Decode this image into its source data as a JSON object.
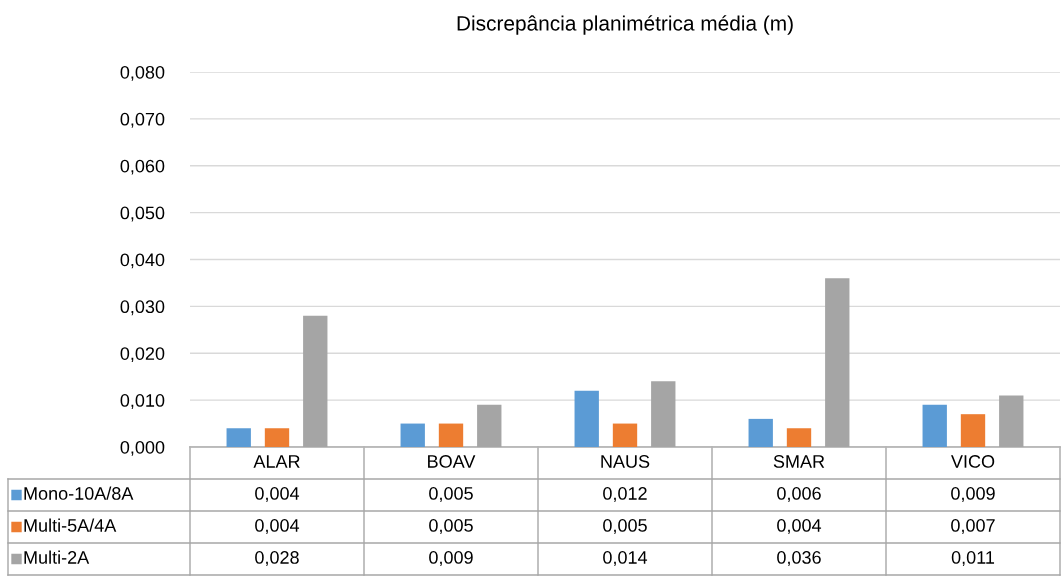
{
  "chart_data": {
    "type": "bar",
    "title": "Discrepância planimétrica média (m)",
    "categories": [
      "ALAR",
      "BOAV",
      "NAUS",
      "SMAR",
      "VICO"
    ],
    "series": [
      {
        "name": "Mono-10A/8A",
        "color": "#5b9bd5",
        "values": [
          0.004,
          0.005,
          0.012,
          0.006,
          0.009
        ],
        "value_labels": [
          "0,004",
          "0,005",
          "0,012",
          "0,006",
          "0,009"
        ]
      },
      {
        "name": "Multi-5A/4A",
        "color": "#ed7d31",
        "values": [
          0.004,
          0.005,
          0.005,
          0.004,
          0.007
        ],
        "value_labels": [
          "0,004",
          "0,005",
          "0,005",
          "0,004",
          "0,007"
        ]
      },
      {
        "name": "Multi-2A",
        "color": "#a5a5a5",
        "values": [
          0.028,
          0.009,
          0.014,
          0.036,
          0.011
        ],
        "value_labels": [
          "0,028",
          "0,009",
          "0,014",
          "0,036",
          "0,011"
        ]
      }
    ],
    "ylim": [
      0,
      0.08
    ],
    "yticks": [
      {
        "value": 0,
        "label": "0,000"
      },
      {
        "value": 0.01,
        "label": "0,010"
      },
      {
        "value": 0.02,
        "label": "0,020"
      },
      {
        "value": 0.03,
        "label": "0,030"
      },
      {
        "value": 0.04,
        "label": "0,040"
      },
      {
        "value": 0.05,
        "label": "0,050"
      },
      {
        "value": 0.06,
        "label": "0,060"
      },
      {
        "value": 0.07,
        "label": "0,070"
      },
      {
        "value": 0.08,
        "label": "0,080"
      }
    ],
    "grid": "y",
    "legend": "bottom"
  }
}
